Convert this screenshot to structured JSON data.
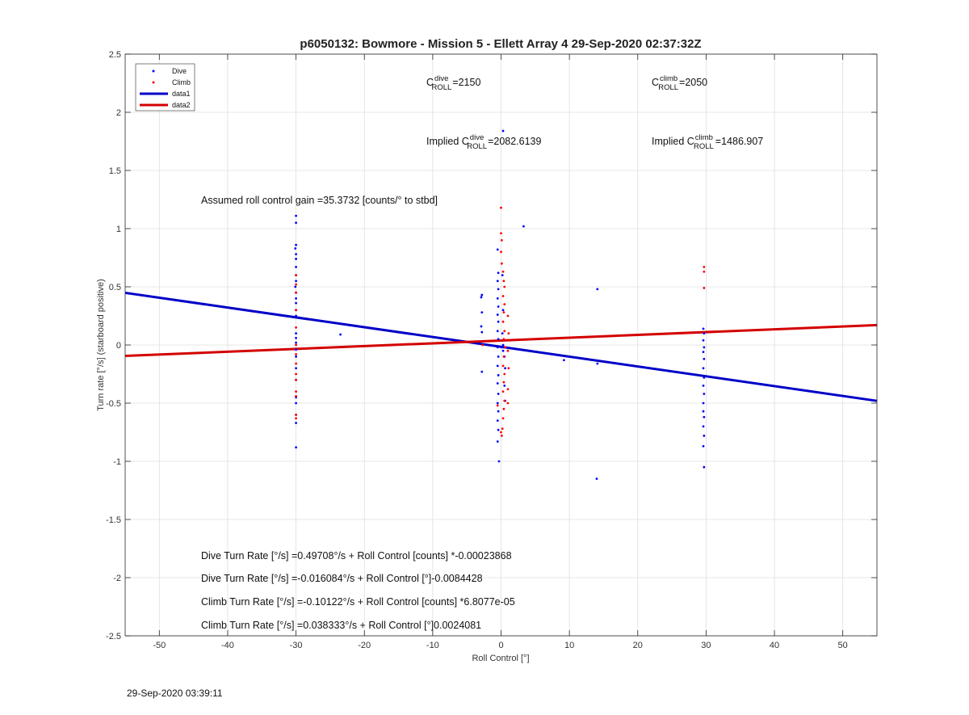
{
  "chart_data": {
    "type": "scatter",
    "title": "p6050132: Bowmore - Mission 5 - Ellett Array 4 29-Sep-2020 02:37:32Z",
    "xlabel": "Roll Control [°]",
    "ylabel": "Turn rate [°/s] (starboard positive)",
    "xlim": [
      -55,
      55
    ],
    "ylim": [
      -2.5,
      2.5
    ],
    "xticks": [
      -50,
      -40,
      -30,
      -20,
      -10,
      0,
      10,
      20,
      30,
      40,
      50
    ],
    "yticks": [
      -2.5,
      -2,
      -1.5,
      -1,
      -0.5,
      0,
      0.5,
      1,
      1.5,
      2,
      2.5
    ],
    "grid": true,
    "legend_position": "top-left",
    "series": [
      {
        "name": "Dive",
        "style": "points",
        "color": "#0000ff",
        "points": [
          [
            -30,
            1.11
          ],
          [
            -30,
            1.05
          ],
          [
            -30,
            0.86
          ],
          [
            -30.1,
            0.83
          ],
          [
            -30,
            0.78
          ],
          [
            -30,
            0.74
          ],
          [
            -30,
            0.67
          ],
          [
            -30,
            0.6
          ],
          [
            -30,
            0.55
          ],
          [
            -30.1,
            0.5
          ],
          [
            -30,
            0.45
          ],
          [
            -30,
            0.4
          ],
          [
            -30,
            0.36
          ],
          [
            -30,
            0.3
          ],
          [
            -30,
            0.25
          ],
          [
            -30,
            0.1
          ],
          [
            -30,
            0.06
          ],
          [
            -30,
            0.02
          ],
          [
            -30,
            -0.04
          ],
          [
            -30,
            -0.1
          ],
          [
            -30,
            -0.2
          ],
          [
            -30,
            -0.3
          ],
          [
            -30,
            -0.45
          ],
          [
            -30,
            -0.5
          ],
          [
            -30,
            -0.6
          ],
          [
            -30,
            -0.67
          ],
          [
            -30,
            -0.88
          ],
          [
            -23.5,
            0.09
          ],
          [
            -2.8,
            0.43
          ],
          [
            -2.9,
            0.41
          ],
          [
            -2.8,
            0.28
          ],
          [
            -2.9,
            0.16
          ],
          [
            -2.8,
            0.11
          ],
          [
            -2.8,
            -0.23
          ],
          [
            -0.5,
            0.82
          ],
          [
            -0.4,
            0.62
          ],
          [
            -0.5,
            0.55
          ],
          [
            -0.4,
            0.48
          ],
          [
            -0.5,
            0.4
          ],
          [
            -0.4,
            0.33
          ],
          [
            -0.5,
            0.26
          ],
          [
            -0.4,
            0.2
          ],
          [
            -0.5,
            0.12
          ],
          [
            -0.4,
            0.05
          ],
          [
            -0.5,
            -0.02
          ],
          [
            -0.4,
            -0.1
          ],
          [
            -0.5,
            -0.18
          ],
          [
            -0.4,
            -0.26
          ],
          [
            -0.5,
            -0.33
          ],
          [
            -0.4,
            -0.42
          ],
          [
            -0.5,
            -0.5
          ],
          [
            -0.4,
            -0.57
          ],
          [
            -0.5,
            -0.65
          ],
          [
            -0.4,
            -0.73
          ],
          [
            -0.5,
            -0.83
          ],
          [
            -0.3,
            -1.0
          ],
          [
            0.3,
            1.84
          ],
          [
            0.2,
            0.6
          ],
          [
            0.3,
            0.3
          ],
          [
            0.2,
            0.1
          ],
          [
            0.3,
            0.0
          ],
          [
            0.1,
            -0.02
          ],
          [
            0.3,
            -0.05
          ],
          [
            0.5,
            -0.1
          ],
          [
            0.6,
            -0.2
          ],
          [
            0.5,
            -0.35
          ],
          [
            0.6,
            -0.48
          ],
          [
            3.3,
            1.02
          ],
          [
            9.2,
            -0.13
          ],
          [
            14.1,
            0.48
          ],
          [
            14.1,
            -0.16
          ],
          [
            14.0,
            -1.15
          ],
          [
            29.6,
            0.14
          ],
          [
            29.7,
            0.1
          ],
          [
            29.6,
            0.04
          ],
          [
            29.7,
            -0.02
          ],
          [
            29.6,
            -0.06
          ],
          [
            29.7,
            -0.12
          ],
          [
            29.6,
            -0.2
          ],
          [
            29.7,
            -0.28
          ],
          [
            29.6,
            -0.35
          ],
          [
            29.7,
            -0.42
          ],
          [
            29.6,
            -0.5
          ],
          [
            29.6,
            -0.57
          ],
          [
            29.7,
            -0.62
          ],
          [
            29.6,
            -0.7
          ],
          [
            29.7,
            -0.78
          ],
          [
            29.6,
            -0.87
          ],
          [
            29.7,
            -1.05
          ]
        ]
      },
      {
        "name": "Climb",
        "style": "points",
        "color": "#ff0000",
        "points": [
          [
            -30,
            0.6
          ],
          [
            -30,
            0.52
          ],
          [
            -30,
            0.45
          ],
          [
            -30,
            0.3
          ],
          [
            -30,
            0.15
          ],
          [
            -30,
            0.0
          ],
          [
            -30,
            -0.08
          ],
          [
            -30,
            -0.16
          ],
          [
            -30,
            -0.25
          ],
          [
            -30,
            -0.3
          ],
          [
            -30,
            -0.4
          ],
          [
            -30,
            -0.44
          ],
          [
            -30,
            -0.6
          ],
          [
            -30,
            -0.63
          ],
          [
            0.0,
            1.18
          ],
          [
            0.0,
            0.96
          ],
          [
            0.1,
            0.9
          ],
          [
            0.0,
            0.8
          ],
          [
            0.1,
            0.7
          ],
          [
            0.3,
            0.63
          ],
          [
            0.4,
            0.55
          ],
          [
            0.5,
            0.5
          ],
          [
            0.3,
            0.42
          ],
          [
            0.5,
            0.35
          ],
          [
            0.4,
            0.28
          ],
          [
            0.3,
            0.2
          ],
          [
            0.5,
            0.12
          ],
          [
            0.4,
            0.05
          ],
          [
            0.6,
            -0.02
          ],
          [
            0.4,
            -0.1
          ],
          [
            0.3,
            -0.18
          ],
          [
            0.5,
            -0.25
          ],
          [
            0.4,
            -0.32
          ],
          [
            0.3,
            -0.4
          ],
          [
            0.5,
            -0.48
          ],
          [
            0.4,
            -0.55
          ],
          [
            0.3,
            -0.63
          ],
          [
            0.2,
            -0.72
          ],
          [
            0.0,
            -0.75
          ],
          [
            0.1,
            -0.78
          ],
          [
            -0.5,
            -0.52
          ],
          [
            -2.7,
            0.0
          ],
          [
            1.0,
            0.25
          ],
          [
            1.1,
            0.1
          ],
          [
            1.0,
            -0.05
          ],
          [
            1.1,
            -0.2
          ],
          [
            1.0,
            -0.38
          ],
          [
            1.0,
            -0.5
          ],
          [
            29.7,
            0.67
          ],
          [
            29.7,
            0.63
          ],
          [
            29.7,
            0.49
          ]
        ]
      },
      {
        "name": "data1",
        "style": "line",
        "color": "#0000c8",
        "line": {
          "intercept": -0.016084,
          "slope": -0.0084428
        }
      },
      {
        "name": "data2",
        "style": "line",
        "color": "#d40000",
        "line": {
          "intercept": 0.038333,
          "slope": 0.0024081
        }
      }
    ],
    "legend": {
      "dive": "Dive",
      "climb": "Climb",
      "data1": "data1",
      "data2": "data2"
    },
    "annotations": {
      "c_dive": {
        "prefix": "C",
        "sup": "dive",
        "sub": "ROLL",
        "value": "=2150"
      },
      "c_climb": {
        "prefix": "C",
        "sup": "climb",
        "sub": "ROLL",
        "value": "=2050"
      },
      "implied_dive": {
        "prefix": "Implied C",
        "sup": "dive",
        "sub": "ROLL",
        "value": "=2082.6139"
      },
      "implied_climb": {
        "prefix": "Implied C",
        "sup": "climb",
        "sub": "ROLL",
        "value": "=1486.907"
      },
      "gain": "Assumed roll control gain =35.3732 [counts/° to stbd]",
      "fit_lines": [
        "Dive Turn Rate [°/s] =0.49708°/s + Roll Control [counts] *-0.00023868",
        "Dive Turn Rate [°/s] =-0.016084°/s + Roll Control [°]-0.0084428",
        "Climb Turn Rate [°/s] =-0.10122°/s + Roll Control [counts] *6.8077e-05",
        "Climb Turn Rate [°/s] =0.038333°/s + Roll Control [°]0.0024081"
      ]
    }
  },
  "footer": {
    "timestamp": "29-Sep-2020 03:39:11"
  }
}
